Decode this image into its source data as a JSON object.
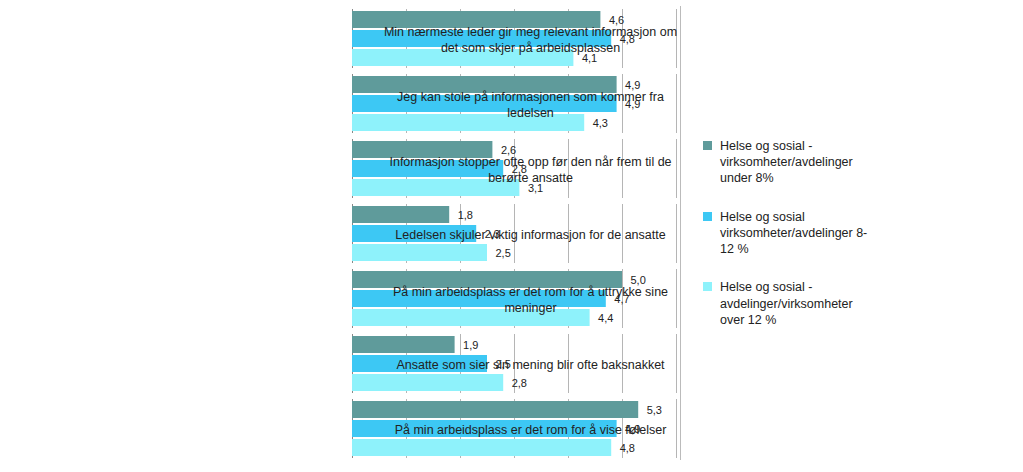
{
  "chart_data": {
    "type": "bar",
    "orientation": "horizontal",
    "categories": [
      "Min nærmeste leder gir meg relevant informasjon om det som skjer på arbeidsplassen",
      "Jeg kan stole på informasjonen som kommer fra ledelsen",
      "Informasjon stopper ofte opp før den når frem til de berørte ansatte",
      "Ledelsen skjuler viktig informasjon for de ansatte",
      "På min arbeidsplass er det rom for å uttrykke sine meninger",
      "Ansatte som sier sin mening blir ofte baksnakket",
      "På min arbeidsplass er det rom for å vise følelser"
    ],
    "series": [
      {
        "name": "Helse og sosial - virksomheter/avdelinger under 8%",
        "color": "#5f9b9b",
        "values": [
          4.6,
          4.9,
          2.6,
          1.8,
          5.0,
          1.9,
          5.3
        ],
        "value_labels": [
          "4,6",
          "4,9",
          "2,6",
          "1,8",
          "5,0",
          "1,9",
          "5,3"
        ]
      },
      {
        "name": "Helse og sosial virksomheter/avdelinger 8-12 %",
        "color": "#3dc8f4",
        "values": [
          4.8,
          4.9,
          2.8,
          2.3,
          4.7,
          2.5,
          4.9
        ],
        "value_labels": [
          "4,8",
          "4,9",
          "2,8",
          "2,3",
          "4,7",
          "2,5",
          "4,9"
        ]
      },
      {
        "name": "Helse og sosial - avdelinger/virksomheter over 12 %",
        "color": "#8ef2fb",
        "values": [
          4.1,
          4.3,
          3.1,
          2.5,
          4.4,
          2.8,
          4.8
        ],
        "value_labels": [
          "4,1",
          "4,3",
          "3,1",
          "2,5",
          "4,4",
          "2,8",
          "4,8"
        ]
      }
    ],
    "xlim": [
      0,
      6
    ],
    "xticks": [
      0,
      1,
      2,
      3,
      4,
      5,
      6
    ],
    "grid": true,
    "tick_labels": false,
    "data_labels": true,
    "legend": "right"
  }
}
